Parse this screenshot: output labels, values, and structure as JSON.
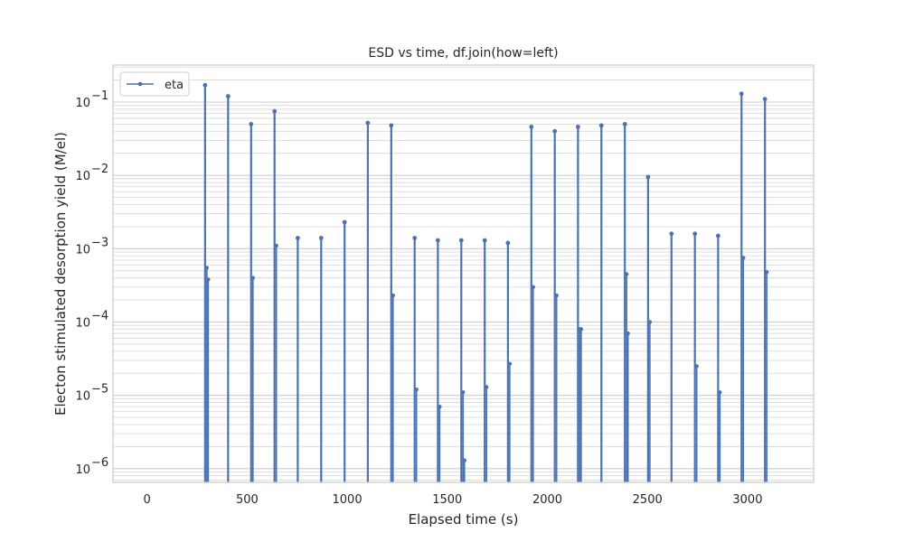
{
  "chart_data": {
    "type": "line",
    "title": "ESD vs time, df.join(how=left)",
    "xlabel": "Elapsed time (s)",
    "ylabel": "Electon stimulated desorption yield (M/el)",
    "x_scale": "linear",
    "y_scale": "log",
    "xlim": [
      -170,
      3330
    ],
    "ylim": [
      6.5e-07,
      0.32
    ],
    "x_ticks": [
      0,
      500,
      1000,
      1500,
      2000,
      2500,
      3000
    ],
    "x_tick_labels": [
      "0",
      "500",
      "1000",
      "1500",
      "2000",
      "2500",
      "3000"
    ],
    "y_ticks": [
      1e-06,
      1e-05,
      0.0001,
      0.001,
      0.01,
      0.1
    ],
    "y_tick_labels": [
      "10",
      "10",
      "10",
      "10",
      "10",
      "10"
    ],
    "y_tick_exponents": [
      "−6",
      "−5",
      "−4",
      "−3",
      "−2",
      "−1"
    ],
    "grid": true,
    "legend_position": "top-left",
    "series": [
      {
        "name": "eta",
        "color": "#4C72B0",
        "marker": "circle",
        "spikes": [
          {
            "x": 290,
            "peak": 0.17,
            "points": [
              0.00055,
              0.00038
            ]
          },
          {
            "x": 405,
            "peak": 0.12,
            "points": []
          },
          {
            "x": 520,
            "peak": 0.05,
            "points": [
              0.0004
            ]
          },
          {
            "x": 637,
            "peak": 0.075,
            "points": [
              0.0011
            ]
          },
          {
            "x": 753,
            "peak": 0.0014,
            "points": []
          },
          {
            "x": 870,
            "peak": 0.0014,
            "points": []
          },
          {
            "x": 987,
            "peak": 0.0023,
            "points": []
          },
          {
            "x": 1103,
            "peak": 0.052,
            "points": []
          },
          {
            "x": 1220,
            "peak": 0.048,
            "points": [
              0.00023
            ]
          },
          {
            "x": 1337,
            "peak": 0.0014,
            "points": [
              1.2e-05
            ]
          },
          {
            "x": 1453,
            "peak": 0.0013,
            "points": [
              7e-06
            ]
          },
          {
            "x": 1570,
            "peak": 0.0013,
            "points": [
              1.1e-05,
              1.3e-06
            ]
          },
          {
            "x": 1687,
            "peak": 0.0013,
            "points": [
              1.3e-05
            ]
          },
          {
            "x": 1803,
            "peak": 0.0012,
            "points": [
              2.7e-05
            ]
          },
          {
            "x": 1920,
            "peak": 0.046,
            "points": [
              0.0003
            ]
          },
          {
            "x": 2037,
            "peak": 0.04,
            "points": [
              0.00023
            ]
          },
          {
            "x": 2153,
            "peak": 0.046,
            "points": [
              8e-05,
              8e-05
            ]
          },
          {
            "x": 2270,
            "peak": 0.048,
            "points": []
          },
          {
            "x": 2387,
            "peak": 0.05,
            "points": [
              0.00045,
              7e-05
            ]
          },
          {
            "x": 2503,
            "peak": 0.0095,
            "points": [
              0.0001
            ]
          },
          {
            "x": 2620,
            "peak": 0.0016,
            "points": []
          },
          {
            "x": 2737,
            "peak": 0.0016,
            "points": [
              2.5e-05
            ]
          },
          {
            "x": 2853,
            "peak": 0.0015,
            "points": [
              1.1e-05
            ]
          },
          {
            "x": 2970,
            "peak": 0.13,
            "points": [
              0.00075
            ]
          },
          {
            "x": 3087,
            "peak": 0.11,
            "points": [
              0.00048
            ]
          }
        ]
      }
    ]
  }
}
